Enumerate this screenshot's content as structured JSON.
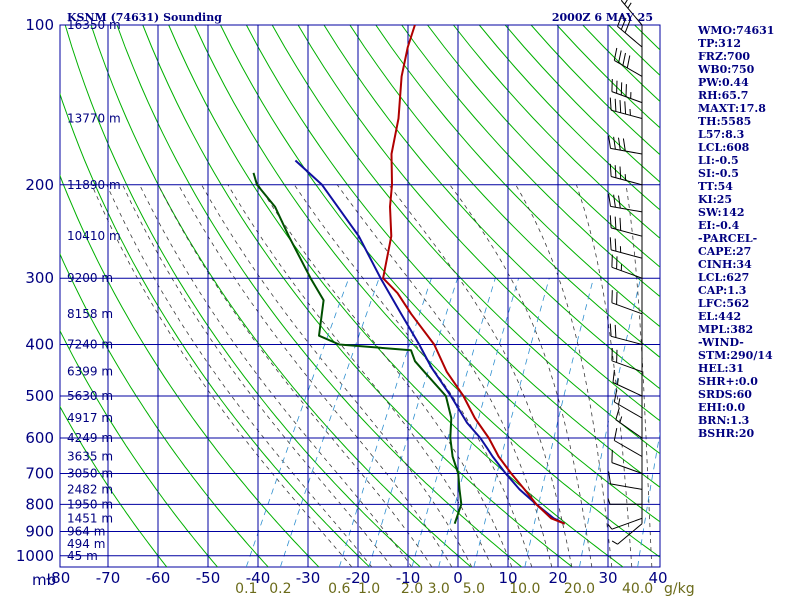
{
  "header": {
    "station": "KSNM (74631) Sounding",
    "time": "2000Z  6 MAY 25"
  },
  "colors": {
    "grid": "#0000a0",
    "dry_adiabat": "#00b000",
    "moist_adiabat": "#3a3a3a",
    "mixing_ratio": "#2f8fcf",
    "temperature": "#b00000",
    "dewpoint": "#005000",
    "parcel": "#1010a0",
    "wind_barb": "#000000"
  },
  "indices": [
    "WMO:74631",
    "TP:312",
    "FRZ:700",
    "WB0:750",
    "PW:0.44",
    "RH:65.7",
    "MAXT:17.8",
    "TH:5585",
    "L57:8.3",
    "LCL:608",
    "LI:-0.5",
    "SI:-0.5",
    "TT:54",
    "KI:25",
    "SW:142",
    "EI:-0.4",
    "-PARCEL-",
    "CAPE:27",
    "CINH:34",
    "LCL:627",
    "CAP:1.3",
    "LFC:562",
    "EL:442",
    "MPL:382",
    "-WIND-",
    "STM:290/14",
    "HEL:31",
    "SHR+:0.0",
    "SRDS:60",
    "EHI:0.0",
    "BRN:1.3",
    "BSHR:20"
  ],
  "chart_data": {
    "type": "skew-t",
    "pressure_unit_label": "mb",
    "mixing_ratio_unit_label": "g/kg",
    "pressure_ticks": [
      {
        "p": 100,
        "label": "100"
      },
      {
        "p": 200,
        "label": "200"
      },
      {
        "p": 300,
        "label": "300"
      },
      {
        "p": 400,
        "label": "400"
      },
      {
        "p": 500,
        "label": "500"
      },
      {
        "p": 600,
        "label": "600"
      },
      {
        "p": 700,
        "label": "700"
      },
      {
        "p": 800,
        "label": "800"
      },
      {
        "p": 900,
        "label": "900"
      },
      {
        "p": 1000,
        "label": "1000"
      }
    ],
    "temperature_ticks": [
      {
        "t": -80,
        "label": "-80"
      },
      {
        "t": -70,
        "label": "-70"
      },
      {
        "t": -60,
        "label": "-60"
      },
      {
        "t": -50,
        "label": "-50"
      },
      {
        "t": -40,
        "label": "-40"
      },
      {
        "t": -30,
        "label": "-30"
      },
      {
        "t": -20,
        "label": "-20"
      },
      {
        "t": -10,
        "label": "-10"
      },
      {
        "t": 0,
        "label": "0"
      },
      {
        "t": 10,
        "label": "10"
      },
      {
        "t": 20,
        "label": "20"
      },
      {
        "t": 30,
        "label": "30"
      },
      {
        "t": 40,
        "label": "40"
      }
    ],
    "height_ticks": [
      {
        "p": 100,
        "label": "16350 m"
      },
      {
        "p": 150,
        "label": "13770 m"
      },
      {
        "p": 200,
        "label": "11890 m"
      },
      {
        "p": 250,
        "label": "10410 m"
      },
      {
        "p": 300,
        "label": "9200 m"
      },
      {
        "p": 350,
        "label": "8158 m"
      },
      {
        "p": 400,
        "label": "7240 m"
      },
      {
        "p": 450,
        "label": "6399 m"
      },
      {
        "p": 500,
        "label": "5630 m"
      },
      {
        "p": 550,
        "label": "4917 m"
      },
      {
        "p": 600,
        "label": "4249 m"
      },
      {
        "p": 650,
        "label": "3635 m"
      },
      {
        "p": 700,
        "label": "3050 m"
      },
      {
        "p": 750,
        "label": "2482 m"
      },
      {
        "p": 800,
        "label": "1950 m"
      },
      {
        "p": 850,
        "label": "1451 m"
      },
      {
        "p": 900,
        "label": "964 m"
      },
      {
        "p": 950,
        "label": "494 m"
      },
      {
        "p": 1000,
        "label": "45 m"
      }
    ],
    "mixing_ratio_ticks": [
      {
        "w": 0.1,
        "label": "0.1"
      },
      {
        "w": 0.2,
        "label": "0.2"
      },
      {
        "w": 0.6,
        "label": "0.6"
      },
      {
        "w": 1.0,
        "label": "1.0"
      },
      {
        "w": 2.0,
        "label": "2.0"
      },
      {
        "w": 3.0,
        "label": "3.0"
      },
      {
        "w": 5.0,
        "label": "5.0"
      },
      {
        "w": 10.0,
        "label": "10.0"
      },
      {
        "w": 20.0,
        "label": "20.0"
      },
      {
        "w": 40.0,
        "label": "40.0"
      }
    ],
    "temperature_profile": [
      [
        870,
        17.8
      ],
      [
        850,
        14.5
      ],
      [
        800,
        10
      ],
      [
        750,
        6
      ],
      [
        700,
        1.6
      ],
      [
        650,
        -2.8
      ],
      [
        600,
        -6.8
      ],
      [
        550,
        -11.8
      ],
      [
        500,
        -16.5
      ],
      [
        450,
        -22.5
      ],
      [
        400,
        -28
      ],
      [
        350,
        -36
      ],
      [
        320,
        -41
      ],
      [
        300,
        -45.5
      ],
      [
        250,
        -48.5
      ],
      [
        220,
        -52
      ],
      [
        200,
        -54
      ],
      [
        175,
        -57.5
      ],
      [
        150,
        -60
      ],
      [
        125,
        -64
      ],
      [
        110,
        -66
      ],
      [
        100,
        -67
      ]
    ],
    "dewpoint_profile": [
      [
        870,
        -4.2
      ],
      [
        800,
        -5
      ],
      [
        750,
        -7
      ],
      [
        700,
        -9
      ],
      [
        650,
        -12
      ],
      [
        600,
        -14.5
      ],
      [
        550,
        -16.5
      ],
      [
        500,
        -20
      ],
      [
        450,
        -27
      ],
      [
        430,
        -30
      ],
      [
        410,
        -32
      ],
      [
        400,
        -47
      ],
      [
        385,
        -52
      ],
      [
        330,
        -55
      ],
      [
        300,
        -60
      ],
      [
        250,
        -69
      ],
      [
        220,
        -75
      ],
      [
        200,
        -81
      ],
      [
        190,
        -83
      ]
    ],
    "parcel_profile": [
      [
        870,
        17.8
      ],
      [
        850,
        15
      ],
      [
        800,
        10
      ],
      [
        750,
        5
      ],
      [
        700,
        0.5
      ],
      [
        650,
        -4
      ],
      [
        627,
        -6
      ],
      [
        600,
        -8.5
      ],
      [
        562,
        -12.8
      ],
      [
        500,
        -19
      ],
      [
        442,
        -26
      ],
      [
        400,
        -31
      ],
      [
        350,
        -38
      ],
      [
        300,
        -46
      ],
      [
        250,
        -55
      ],
      [
        200,
        -68
      ],
      [
        180,
        -76
      ]
    ],
    "wind_profile": [
      [
        100,
        320,
        25
      ],
      [
        110,
        310,
        30
      ],
      [
        125,
        300,
        40
      ],
      [
        140,
        290,
        45
      ],
      [
        150,
        285,
        45
      ],
      [
        175,
        280,
        40
      ],
      [
        200,
        285,
        35
      ],
      [
        225,
        280,
        30
      ],
      [
        250,
        285,
        30
      ],
      [
        275,
        285,
        25
      ],
      [
        300,
        290,
        25
      ],
      [
        350,
        290,
        20
      ],
      [
        400,
        285,
        20
      ],
      [
        450,
        290,
        20
      ],
      [
        500,
        295,
        15
      ],
      [
        550,
        300,
        15
      ],
      [
        600,
        305,
        15
      ],
      [
        650,
        300,
        10
      ],
      [
        700,
        290,
        10
      ],
      [
        750,
        280,
        10
      ],
      [
        800,
        270,
        5
      ],
      [
        850,
        250,
        5
      ],
      [
        870,
        230,
        5
      ]
    ],
    "grid": true
  }
}
